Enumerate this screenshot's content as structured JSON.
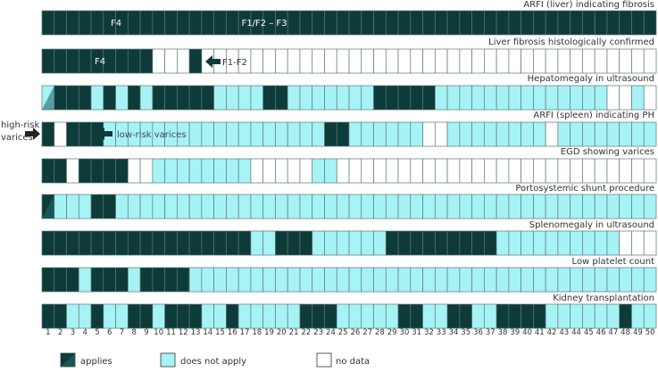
{
  "colors": {
    "applies": "#0d3b3a",
    "not_apply": "#a6f3f6",
    "no_data": "#ffffff",
    "grid": "#5f7777",
    "text": "#333333"
  },
  "columns": [
    "1",
    "2",
    "3",
    "4",
    "5",
    "6",
    "7",
    "8",
    "9",
    "10",
    "11",
    "12",
    "13",
    "14",
    "15",
    "16",
    "17",
    "18",
    "19",
    "20",
    "21",
    "22",
    "23",
    "24",
    "25",
    "26",
    "27",
    "28",
    "29",
    "30",
    "31",
    "32",
    "33",
    "34",
    "35",
    "36",
    "37",
    "38",
    "39",
    "40",
    "41",
    "42",
    "43",
    "44",
    "45",
    "46",
    "47",
    "48",
    "49",
    "50"
  ],
  "rows": [
    {
      "title": "ARFI (liver) indicating fibrosis",
      "cells": "AAAAAAAAAAAAAAAAAAAAAAAAAAAAAAAAAAAAAAAAAAAAAAAAAA"
    },
    {
      "title": "Liver fibrosis histologically confirmed",
      "cells": "AAAAAAAAA   A                                     "
    },
    {
      "title": "Hepatomegaly in ultrasound",
      "cells": "NAAANANANAAAAANNNNAANNNNNNNAAAAANNNNNNNNNNNNNN  N "
    },
    {
      "title": "ARFI (spleen) indicating PH",
      "cells": "A AAANNNNNNNNNNNNNNNNNNAANNNNNN  NNNNNNNN NNNNNNNNN"
    },
    {
      "title": "EGD showing varices",
      "cells": "AA AAAA  NNNNNNNN     NN                          "
    },
    {
      "title": "Portosystemic shunt procedure",
      "cells": "ANNNAANNNNNNNNNNNNNNNNNNNNNNNNNNNNNNNNNNNNNNNNNNNN"
    },
    {
      "title": "Splenomegaly in ultrasound",
      "cells": "AAAAAAAAAAAAAAAAANNAAANNNNNNAAAAAAAAANNNNNNNNNN   "
    },
    {
      "title": "Low platelet count",
      "cells": "AAANAAANAAAANNNNNNNNNNNNNNNNNNNNNNNNNNNNNNNNNNNNNN"
    },
    {
      "title": "Kidney transplantation",
      "cells": "AANNANNAANAAANNANNNNNAAANNNNNAANNAANNAAAANNNNNNANN"
    }
  ],
  "overlays": {
    "arfi_f4": "F4",
    "arfi_f1": "F1/F2 – F3",
    "hist_f4": "F4",
    "hist_f1": "F1-F2",
    "high_risk": "high-risk\nvarices",
    "low_risk": "low-risk varices"
  },
  "legend": {
    "applies": "applies",
    "not_apply": "does not apply",
    "no_data": "no data"
  }
}
